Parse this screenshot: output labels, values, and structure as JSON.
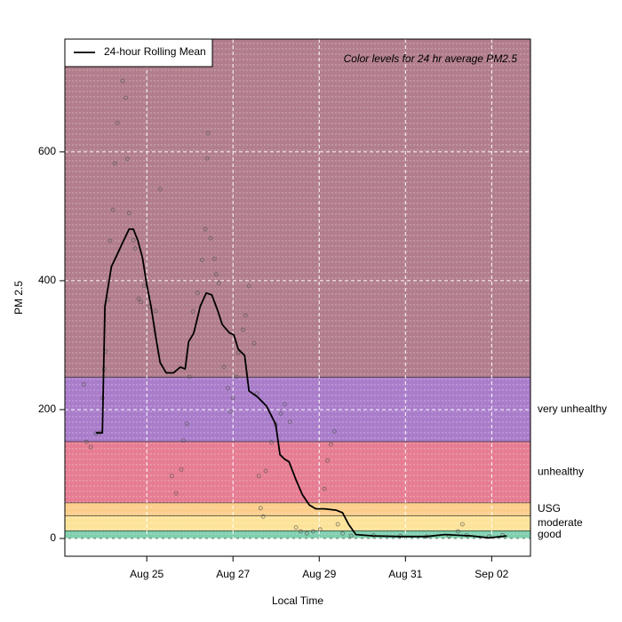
{
  "chart_data": {
    "type": "line",
    "annotation": "Color levels for 24 hr average PM2.5",
    "xlabel": "Local Time",
    "ylabel": "PM 2.5",
    "xlim": [
      -1.9,
      8.9
    ],
    "xticks": [
      {
        "value": 0,
        "label": "Aug 25"
      },
      {
        "value": 2,
        "label": "Aug 27"
      },
      {
        "value": 4,
        "label": "Aug 29"
      },
      {
        "value": 6,
        "label": "Aug 31"
      },
      {
        "value": 8,
        "label": "Sep 02"
      }
    ],
    "ylim": [
      -27.6,
      775
    ],
    "yticks": [
      0,
      200,
      400,
      600
    ],
    "grid": true,
    "legend": "top-left",
    "bands": [
      {
        "name": "good",
        "from": 0,
        "to": 12,
        "color": "#7fcfae"
      },
      {
        "name": "moderate",
        "from": 12,
        "to": 35.4,
        "color": "#fde39a"
      },
      {
        "name": "USG",
        "from": 35.4,
        "to": 55.4,
        "color": "#fcce8c"
      },
      {
        "name": "unhealthy",
        "from": 55.4,
        "to": 150.4,
        "color": "#e67d93"
      },
      {
        "name": "very unhealthy",
        "from": 150.4,
        "to": 250.4,
        "color": "#aa7dcb"
      },
      {
        "from": 250.4,
        "to": 775,
        "color": "#b27e8d"
      }
    ],
    "series": [
      {
        "type": "scatter",
        "color": "#555555",
        "x": [
          -1.46,
          -1.4,
          -1.3,
          -1.18,
          -1.09,
          -1.03,
          -0.99,
          -0.95,
          -0.91,
          -0.85,
          -0.78,
          -0.74,
          -0.68,
          -0.56,
          -0.49,
          -0.45,
          -0.41,
          -0.31,
          -0.27,
          -0.19,
          -0.14,
          -0.06,
          0.06,
          0.21,
          0.31,
          0.58,
          0.68,
          0.8,
          0.85,
          0.93,
          0.99,
          1.07,
          1.18,
          1.28,
          1.36,
          1.4,
          1.42,
          1.48,
          1.57,
          1.61,
          1.67,
          1.79,
          1.88,
          1.94,
          2.0,
          2.08,
          2.12,
          2.23,
          2.29,
          2.37,
          2.49,
          2.56,
          2.6,
          2.64,
          2.7,
          2.76,
          2.89,
          2.99,
          3.11,
          3.2,
          3.32,
          3.46,
          3.57,
          3.71,
          3.86,
          4.02,
          4.12,
          4.19,
          4.27,
          4.35,
          4.43,
          4.54,
          4.74,
          5.26,
          5.88,
          6.49,
          7.01,
          7.22,
          7.32,
          7.42,
          7.94,
          8.25
        ],
        "values": [
          239,
          150,
          142,
          163,
          164,
          218,
          263,
          290,
          371,
          462,
          510,
          582,
          645,
          710,
          684,
          589,
          505,
          463,
          450,
          372,
          367,
          392,
          360,
          353,
          542,
          97,
          70,
          107,
          152,
          178,
          251,
          352,
          381,
          432,
          480,
          590,
          629,
          466,
          434,
          410,
          396,
          266,
          233,
          197,
          218,
          251,
          288,
          324,
          346,
          392,
          303,
          225,
          97,
          47,
          34,
          105,
          149,
          177,
          194,
          208,
          181,
          17,
          11,
          8,
          11,
          14,
          77,
          121,
          146,
          166,
          22,
          8,
          4,
          5,
          4,
          3,
          4,
          11,
          22,
          5,
          3,
          5
        ]
      },
      {
        "type": "line",
        "name": "24-hour Rolling Mean",
        "color": "#000000",
        "x": [
          -1.18,
          -1.03,
          -0.97,
          -0.82,
          -0.72,
          -0.58,
          -0.41,
          -0.31,
          -0.21,
          -0.1,
          0,
          0.1,
          0.21,
          0.31,
          0.45,
          0.62,
          0.78,
          0.89,
          0.97,
          1.09,
          1.24,
          1.38,
          1.51,
          1.65,
          1.75,
          1.92,
          2.02,
          2.12,
          2.27,
          2.37,
          2.58,
          2.78,
          2.99,
          3.09,
          3.2,
          3.3,
          3.46,
          3.61,
          3.77,
          3.92,
          4.12,
          4.39,
          4.54,
          4.68,
          4.85,
          5.26,
          5.88,
          6.49,
          6.91,
          7.53,
          7.94,
          8.35
        ],
        "values": [
          164,
          164,
          360,
          422,
          436,
          456,
          480,
          480,
          463,
          436,
          394,
          360,
          312,
          273,
          257,
          257,
          266,
          263,
          305,
          319,
          360,
          381,
          378,
          353,
          332,
          319,
          316,
          294,
          284,
          229,
          219,
          205,
          177,
          130,
          123,
          119,
          91,
          68,
          52,
          46,
          46,
          44,
          40,
          22,
          6,
          4,
          3,
          3,
          6,
          4,
          1,
          4
        ]
      }
    ]
  }
}
